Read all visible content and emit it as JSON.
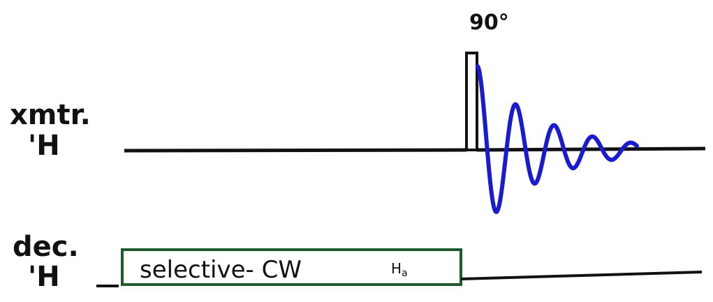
{
  "pulse_label": "90°",
  "channels": [
    {
      "name": "xmtr.",
      "nucleus": "'H"
    },
    {
      "name": "dec.",
      "nucleus": "'H"
    }
  ],
  "decoupler_box": {
    "label": "selective- CW",
    "target": "H",
    "target_subscript": "a"
  }
}
